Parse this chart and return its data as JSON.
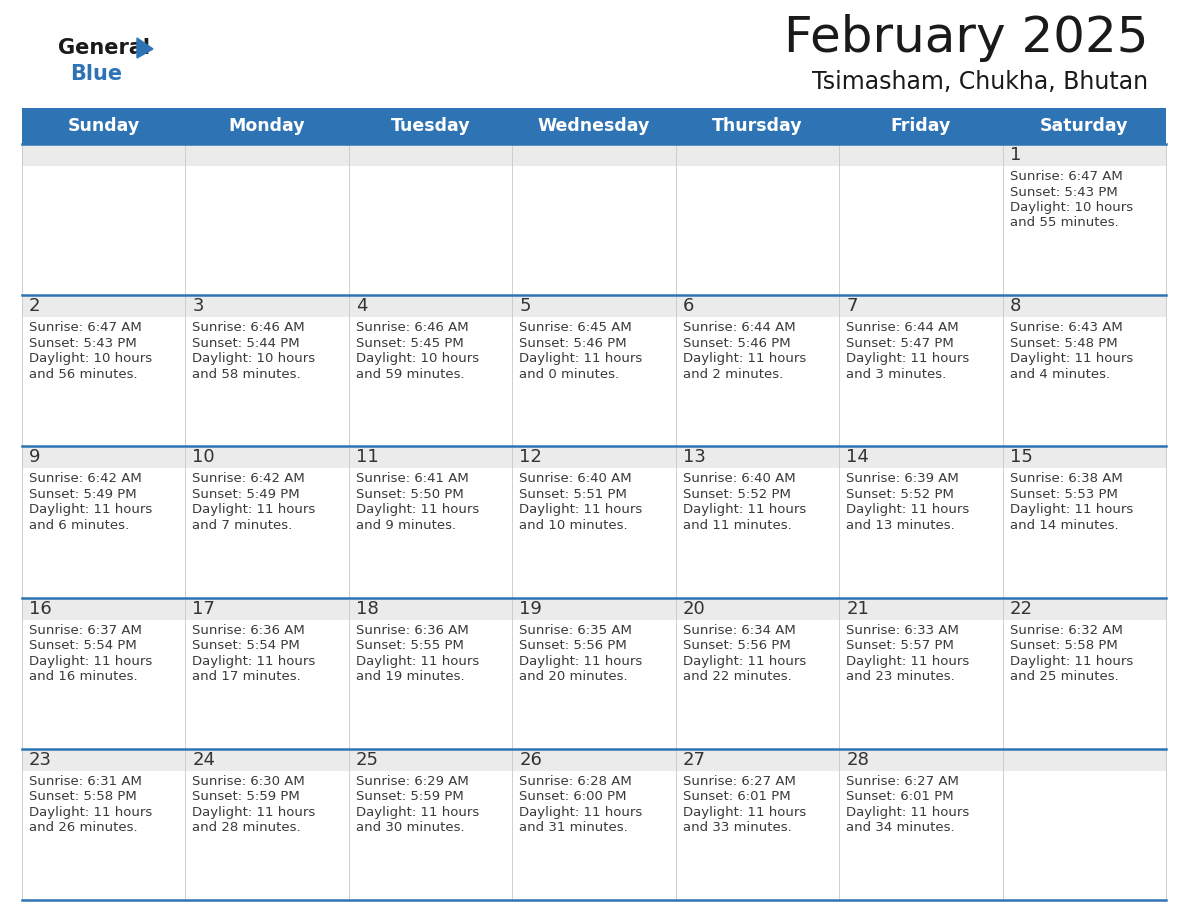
{
  "title": "February 2025",
  "subtitle": "Tsimasham, Chukha, Bhutan",
  "header_color": "#2E74B5",
  "header_text_color": "#FFFFFF",
  "weekdays": [
    "Sunday",
    "Monday",
    "Tuesday",
    "Wednesday",
    "Thursday",
    "Friday",
    "Saturday"
  ],
  "background_color": "#FFFFFF",
  "day_strip_color": "#EBEBEB",
  "cell_bg_color": "#FFFFFF",
  "separator_color": "#2E74B5",
  "text_color": "#333333",
  "day_number_color": "#333333",
  "calendar_data": [
    [
      null,
      null,
      null,
      null,
      null,
      null,
      {
        "day": 1,
        "sunrise": "6:47 AM",
        "sunset": "5:43 PM",
        "daylight": "10 hours and 55 minutes."
      }
    ],
    [
      {
        "day": 2,
        "sunrise": "6:47 AM",
        "sunset": "5:43 PM",
        "daylight": "10 hours and 56 minutes."
      },
      {
        "day": 3,
        "sunrise": "6:46 AM",
        "sunset": "5:44 PM",
        "daylight": "10 hours and 58 minutes."
      },
      {
        "day": 4,
        "sunrise": "6:46 AM",
        "sunset": "5:45 PM",
        "daylight": "10 hours and 59 minutes."
      },
      {
        "day": 5,
        "sunrise": "6:45 AM",
        "sunset": "5:46 PM",
        "daylight": "11 hours and 0 minutes."
      },
      {
        "day": 6,
        "sunrise": "6:44 AM",
        "sunset": "5:46 PM",
        "daylight": "11 hours and 2 minutes."
      },
      {
        "day": 7,
        "sunrise": "6:44 AM",
        "sunset": "5:47 PM",
        "daylight": "11 hours and 3 minutes."
      },
      {
        "day": 8,
        "sunrise": "6:43 AM",
        "sunset": "5:48 PM",
        "daylight": "11 hours and 4 minutes."
      }
    ],
    [
      {
        "day": 9,
        "sunrise": "6:42 AM",
        "sunset": "5:49 PM",
        "daylight": "11 hours and 6 minutes."
      },
      {
        "day": 10,
        "sunrise": "6:42 AM",
        "sunset": "5:49 PM",
        "daylight": "11 hours and 7 minutes."
      },
      {
        "day": 11,
        "sunrise": "6:41 AM",
        "sunset": "5:50 PM",
        "daylight": "11 hours and 9 minutes."
      },
      {
        "day": 12,
        "sunrise": "6:40 AM",
        "sunset": "5:51 PM",
        "daylight": "11 hours and 10 minutes."
      },
      {
        "day": 13,
        "sunrise": "6:40 AM",
        "sunset": "5:52 PM",
        "daylight": "11 hours and 11 minutes."
      },
      {
        "day": 14,
        "sunrise": "6:39 AM",
        "sunset": "5:52 PM",
        "daylight": "11 hours and 13 minutes."
      },
      {
        "day": 15,
        "sunrise": "6:38 AM",
        "sunset": "5:53 PM",
        "daylight": "11 hours and 14 minutes."
      }
    ],
    [
      {
        "day": 16,
        "sunrise": "6:37 AM",
        "sunset": "5:54 PM",
        "daylight": "11 hours and 16 minutes."
      },
      {
        "day": 17,
        "sunrise": "6:36 AM",
        "sunset": "5:54 PM",
        "daylight": "11 hours and 17 minutes."
      },
      {
        "day": 18,
        "sunrise": "6:36 AM",
        "sunset": "5:55 PM",
        "daylight": "11 hours and 19 minutes."
      },
      {
        "day": 19,
        "sunrise": "6:35 AM",
        "sunset": "5:56 PM",
        "daylight": "11 hours and 20 minutes."
      },
      {
        "day": 20,
        "sunrise": "6:34 AM",
        "sunset": "5:56 PM",
        "daylight": "11 hours and 22 minutes."
      },
      {
        "day": 21,
        "sunrise": "6:33 AM",
        "sunset": "5:57 PM",
        "daylight": "11 hours and 23 minutes."
      },
      {
        "day": 22,
        "sunrise": "6:32 AM",
        "sunset": "5:58 PM",
        "daylight": "11 hours and 25 minutes."
      }
    ],
    [
      {
        "day": 23,
        "sunrise": "6:31 AM",
        "sunset": "5:58 PM",
        "daylight": "11 hours and 26 minutes."
      },
      {
        "day": 24,
        "sunrise": "6:30 AM",
        "sunset": "5:59 PM",
        "daylight": "11 hours and 28 minutes."
      },
      {
        "day": 25,
        "sunrise": "6:29 AM",
        "sunset": "5:59 PM",
        "daylight": "11 hours and 30 minutes."
      },
      {
        "day": 26,
        "sunrise": "6:28 AM",
        "sunset": "6:00 PM",
        "daylight": "11 hours and 31 minutes."
      },
      {
        "day": 27,
        "sunrise": "6:27 AM",
        "sunset": "6:01 PM",
        "daylight": "11 hours and 33 minutes."
      },
      {
        "day": 28,
        "sunrise": "6:27 AM",
        "sunset": "6:01 PM",
        "daylight": "11 hours and 34 minutes."
      },
      null
    ]
  ]
}
